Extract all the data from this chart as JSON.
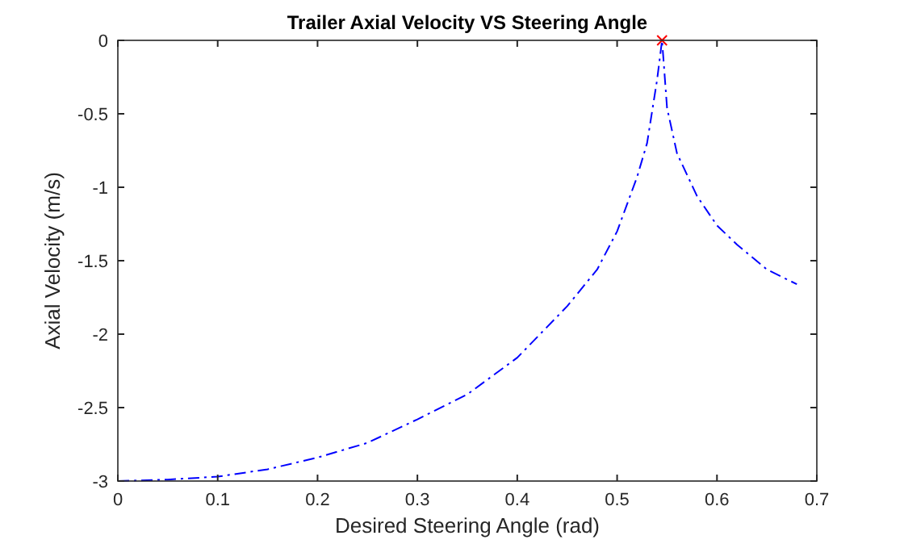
{
  "chart_data": {
    "type": "line",
    "title": "Trailer Axial Velocity VS Steering Angle",
    "xlabel": "Desired Steering Angle (rad)",
    "ylabel": "Axial Velocity (m/s)",
    "xlim": [
      0,
      0.7
    ],
    "xticks": [
      0,
      0.1,
      0.2,
      0.3,
      0.4,
      0.5,
      0.6,
      0.7
    ],
    "ylim": [
      -3,
      0
    ],
    "yticks": [
      -3,
      -2.5,
      -2,
      -1.5,
      -1,
      -0.5,
      0
    ],
    "grid": false,
    "series": [
      {
        "color": "#0000ff",
        "line_style": "dashed",
        "marker": "none",
        "x": [
          0,
          0.05,
          0.1,
          0.15,
          0.2,
          0.25,
          0.3,
          0.35,
          0.4,
          0.45,
          0.48,
          0.5,
          0.52,
          0.53,
          0.54,
          0.545,
          0.55,
          0.56,
          0.58,
          0.6,
          0.62,
          0.65,
          0.68
        ],
        "values": [
          -3,
          -2.99,
          -2.97,
          -2.92,
          -2.84,
          -2.74,
          -2.58,
          -2.41,
          -2.16,
          -1.81,
          -1.56,
          -1.3,
          -0.93,
          -0.7,
          -0.27,
          0,
          -0.46,
          -0.77,
          -1.06,
          -1.26,
          -1.39,
          -1.56,
          -1.66
        ]
      },
      {
        "type": "scatter",
        "color": "#ff0000",
        "marker": "cross",
        "x": [
          0.545
        ],
        "values": [
          0
        ]
      }
    ]
  }
}
